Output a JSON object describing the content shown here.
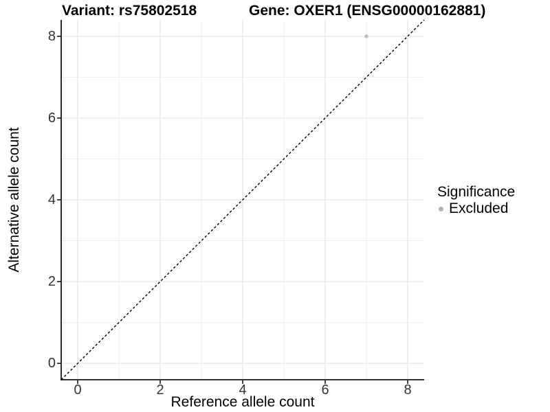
{
  "header": {
    "title_left": "Variant: rs75802518",
    "title_right": "Gene: OXER1 (ENSG00000162881)"
  },
  "chart_data": {
    "type": "scatter",
    "xlabel": "Reference allele count",
    "ylabel": "Alternative allele count",
    "xlim": [
      -0.4,
      8.4
    ],
    "ylim": [
      -0.4,
      8.4
    ],
    "x_ticks": [
      0,
      2,
      4,
      6,
      8
    ],
    "y_ticks": [
      0,
      2,
      4,
      6,
      8
    ],
    "x_minor_ticks": [
      1,
      3,
      5,
      7
    ],
    "y_minor_ticks": [
      1,
      3,
      5,
      7
    ],
    "grid": "major+minor",
    "points": [
      {
        "x": 7,
        "y": 8,
        "series": "Excluded"
      }
    ],
    "reference_line": {
      "style": "dashed",
      "slope": 1,
      "intercept": 0,
      "from": [
        -0.4,
        -0.4
      ],
      "to": [
        8.4,
        8.4
      ]
    },
    "legend": {
      "title": "Significance",
      "position": "right",
      "entries": [
        {
          "label": "Excluded",
          "marker": "circle",
          "color": "#b4b4b4"
        }
      ]
    }
  },
  "colors": {
    "background": "#ffffff",
    "grid_major": "#e4e4e4",
    "grid_minor": "#f0f0f0",
    "axis_line": "#141414",
    "tick_label": "#333333",
    "title": "#000000",
    "point": "#bebebe",
    "reference_line": "#000000"
  }
}
